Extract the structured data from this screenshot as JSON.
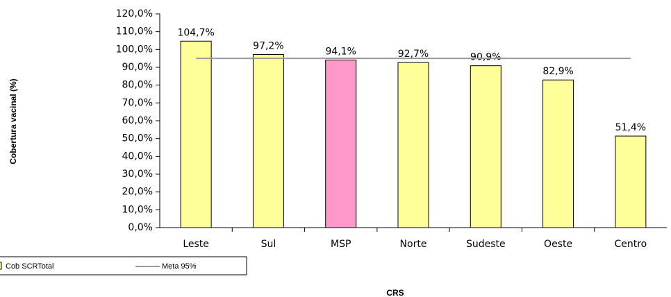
{
  "chart_data": {
    "type": "bar",
    "x_label": "CRS",
    "y_label": "Cobertura vacinal (%)",
    "categories": [
      "Leste",
      "Sul",
      "MSP",
      "Norte",
      "Sudeste",
      "Oeste",
      "Centro"
    ],
    "series": [
      {
        "name": "Cob SCRTotal",
        "type": "bar",
        "colors": [
          "#ffff99",
          "#ffff99",
          "#ff99cc",
          "#ffff99",
          "#ffff99",
          "#ffff99",
          "#ffff99"
        ],
        "values": [
          104.7,
          97.2,
          94.1,
          92.7,
          90.9,
          82.9,
          51.4
        ],
        "value_labels": [
          "104,7%",
          "97,2%",
          "94,1%",
          "92,7%",
          "90,9%",
          "82,9%",
          "51,4%"
        ]
      },
      {
        "name": "Meta 95%",
        "type": "line",
        "color": "#999999",
        "values": [
          95,
          95,
          95,
          95,
          95,
          95,
          95
        ]
      }
    ],
    "ylim": [
      0,
      120
    ],
    "yticks": [
      {
        "value": 0,
        "label": "0,0%"
      },
      {
        "value": 10,
        "label": "10,0%"
      },
      {
        "value": 20,
        "label": "20,0%"
      },
      {
        "value": 30,
        "label": "30,0%"
      },
      {
        "value": 40,
        "label": "40,0%"
      },
      {
        "value": 50,
        "label": "50,0%"
      },
      {
        "value": 60,
        "label": "60,0%"
      },
      {
        "value": 70,
        "label": "70,0%"
      },
      {
        "value": 80,
        "label": "80,0%"
      },
      {
        "value": 90,
        "label": "90,0%"
      },
      {
        "value": 100,
        "label": "100,0%"
      },
      {
        "value": 110,
        "label": "110,0%"
      },
      {
        "value": 120,
        "label": "120,0%"
      }
    ],
    "grid": false
  }
}
